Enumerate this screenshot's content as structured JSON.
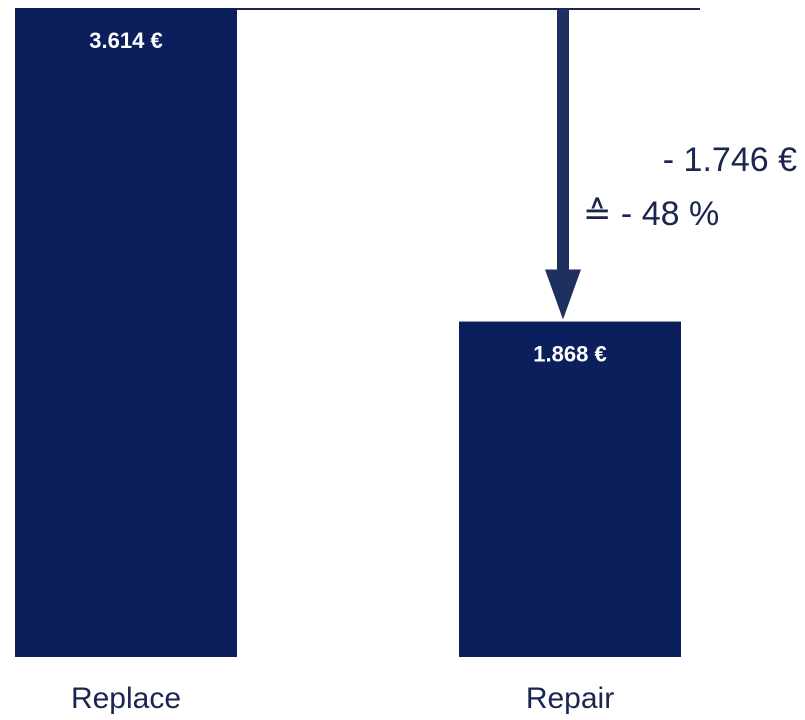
{
  "chart_data": {
    "type": "bar",
    "categories": [
      "Replace",
      "Repair"
    ],
    "values": [
      3614,
      1868
    ],
    "value_labels": [
      "3.614 €",
      "1.868 €"
    ],
    "color": "#0a1f5c",
    "annotations": [
      "- 1.746 €",
      "≙ - 48 %"
    ]
  }
}
